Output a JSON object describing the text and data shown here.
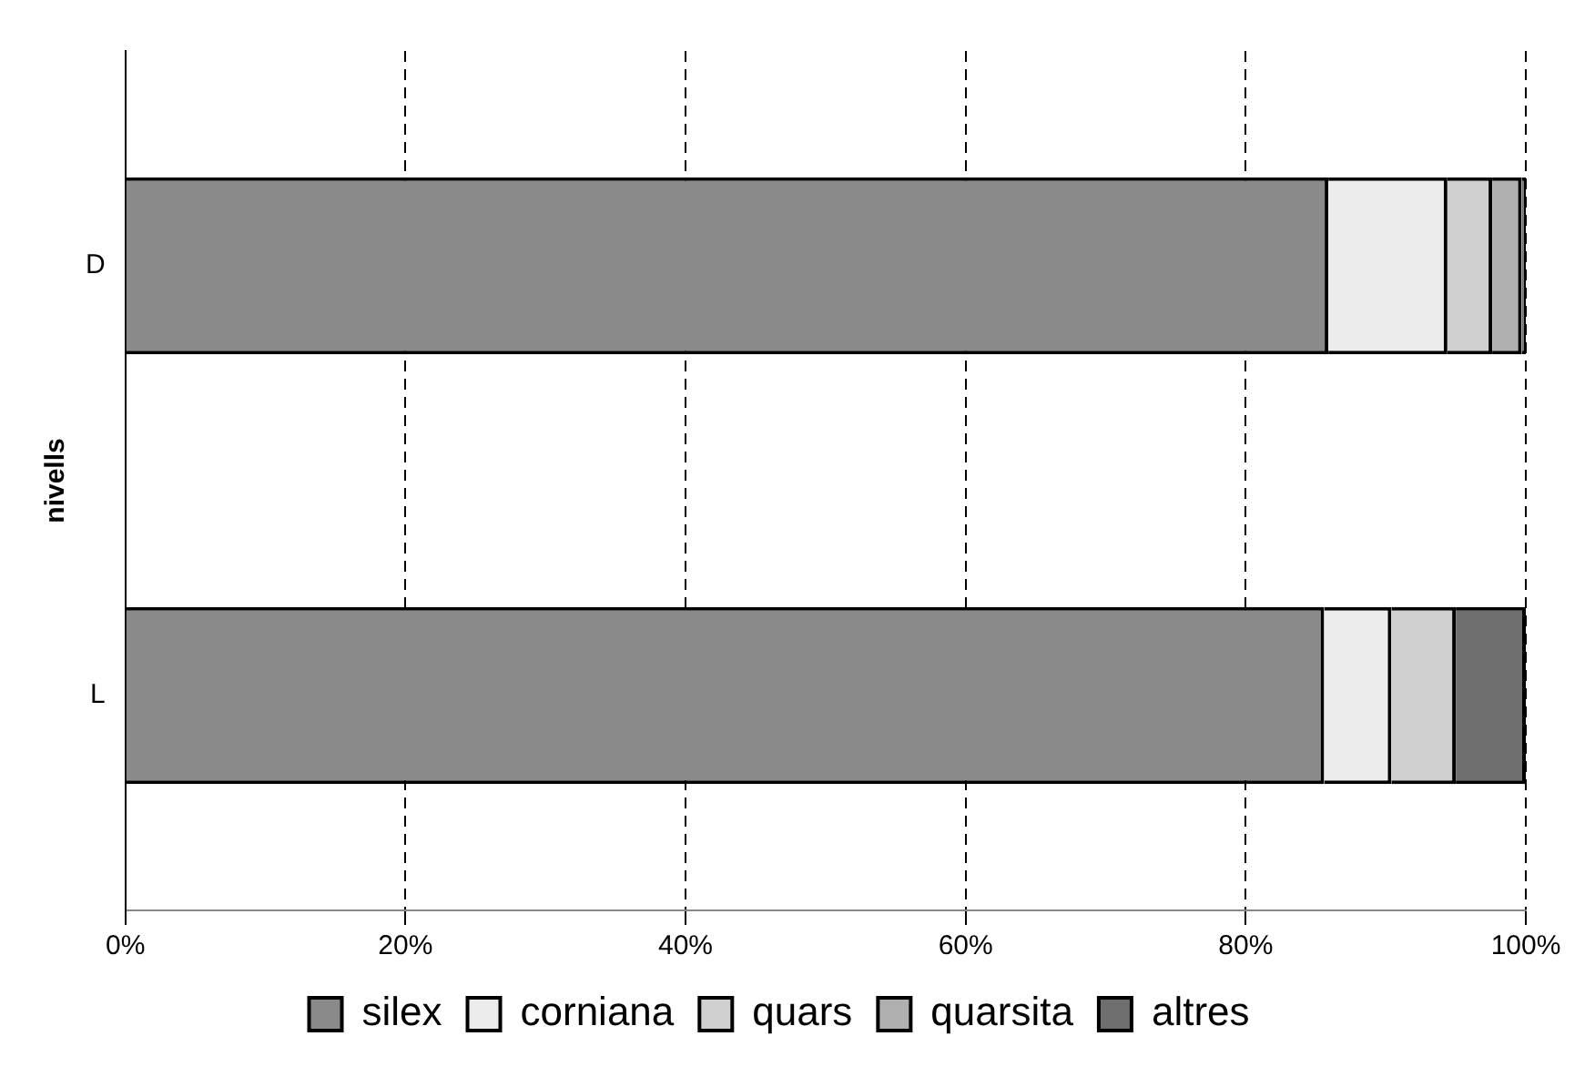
{
  "chart_data": {
    "type": "bar",
    "orientation": "horizontal",
    "stacked": true,
    "ylabel": "nivells",
    "categories": [
      "D",
      "L"
    ],
    "series": [
      {
        "name": "silex",
        "color": "#8a8a8a",
        "values": [
          85.9,
          85.6
        ]
      },
      {
        "name": "corniana",
        "color": "#ececec",
        "values": [
          8.5,
          4.8
        ]
      },
      {
        "name": "quars",
        "color": "#d0d0d0",
        "values": [
          3.2,
          4.6
        ]
      },
      {
        "name": "quarsita",
        "color": "#b0b0b0",
        "values": [
          2.1,
          0
        ]
      },
      {
        "name": "altres",
        "color": "#6e6e6e",
        "values": [
          0.3,
          5.0
        ]
      }
    ],
    "xlim": [
      0,
      100
    ],
    "xticks": [
      {
        "value": 0,
        "label": "0%"
      },
      {
        "value": 20,
        "label": "20%"
      },
      {
        "value": 40,
        "label": "40%"
      },
      {
        "value": 60,
        "label": "60%"
      },
      {
        "value": 80,
        "label": "80%"
      },
      {
        "value": 100,
        "label": "100%"
      }
    ],
    "grid": "x",
    "legend": "bottom"
  }
}
